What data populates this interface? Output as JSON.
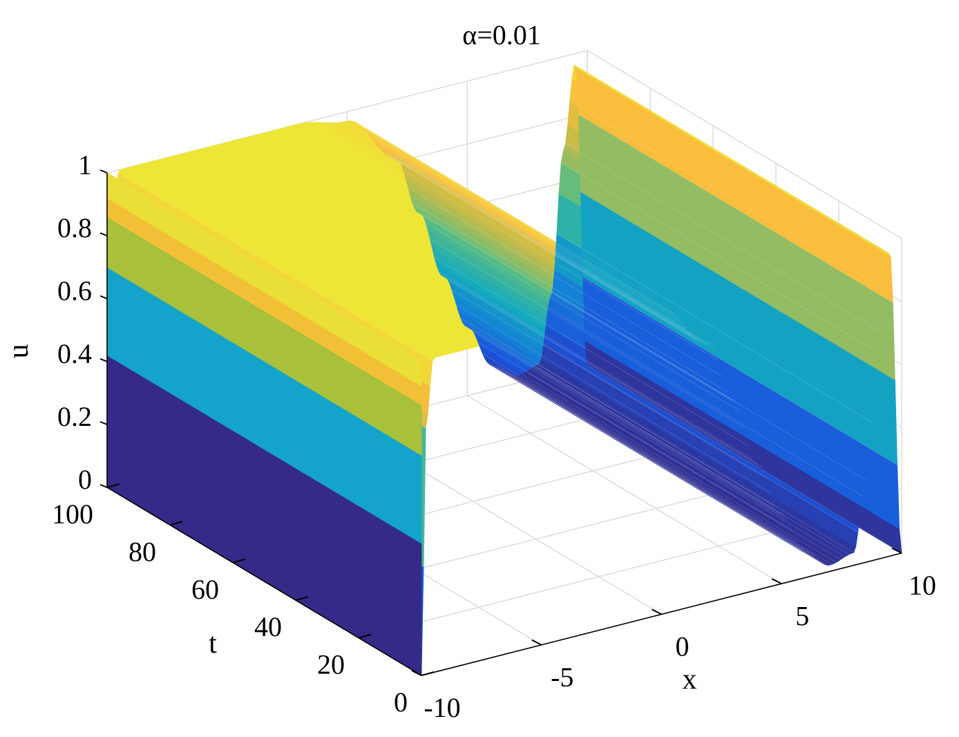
{
  "chart_data": {
    "type": "surface",
    "title": "α=0.01",
    "xlabel": "x",
    "ylabel": "t",
    "zlabel": "u",
    "xlim": [
      -10,
      10
    ],
    "ylim": [
      0,
      100
    ],
    "zlim": [
      0,
      1
    ],
    "x_ticks": [
      -10,
      -5,
      0,
      5,
      10
    ],
    "x_tick_labels": [
      "-10",
      "-5",
      "0",
      "5",
      "10"
    ],
    "y_ticks": [
      0,
      20,
      40,
      60,
      80,
      100
    ],
    "y_tick_labels": [
      "0",
      "20",
      "40",
      "60",
      "80",
      "100"
    ],
    "z_ticks": [
      0,
      0.2,
      0.4,
      0.6,
      0.8,
      1
    ],
    "z_tick_labels": [
      "0",
      "0.2",
      "0.4",
      "0.6",
      "0.8",
      "1"
    ],
    "grid": true,
    "colormap": "parula",
    "surface_profile": {
      "description_values": "u(x) along x at fixed t (surface nearly constant in t)",
      "x": [
        -10,
        -9.8,
        -9.5,
        -8,
        -6,
        -4,
        -2,
        0,
        2,
        3,
        4,
        5,
        6,
        7,
        8,
        8.5,
        9,
        9.5,
        10
      ],
      "u": [
        0.0,
        0.8,
        1.0,
        1.0,
        1.0,
        1.0,
        1.0,
        0.97,
        0.82,
        0.62,
        0.4,
        0.22,
        0.08,
        0.02,
        0.04,
        0.25,
        0.7,
        0.97,
        0.0
      ]
    },
    "side_face_bands": {
      "u_breaks": [
        0,
        0.42,
        0.7,
        0.86,
        0.92,
        1.0
      ],
      "colors": [
        "#352a87",
        "#13a3cb",
        "#a8c03a",
        "#f2c037",
        "#eadf37"
      ]
    }
  }
}
